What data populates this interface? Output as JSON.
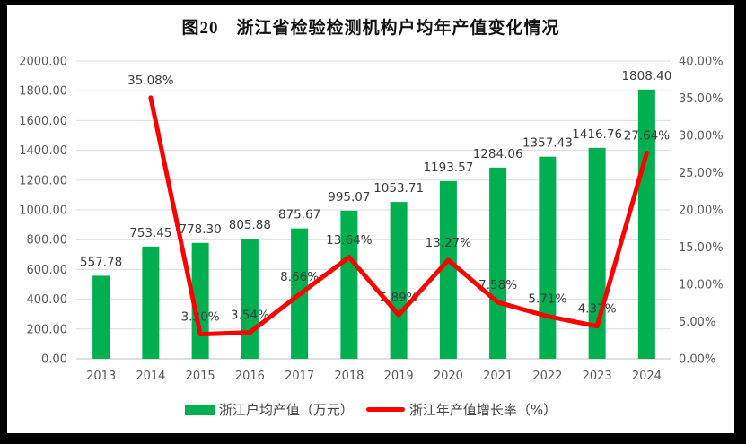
{
  "title": "图20　浙江省检验检测机构户均年产值变化情况",
  "chart_data": {
    "type": "bar",
    "subtype": "combo-bar-line-dual-axis",
    "categories": [
      "2013",
      "2014",
      "2015",
      "2016",
      "2017",
      "2018",
      "2019",
      "2020",
      "2021",
      "2022",
      "2023",
      "2024"
    ],
    "series": [
      {
        "name": "浙江户均产值（万元）",
        "type": "bar",
        "axis": "left",
        "color": "#00AF50",
        "values": [
          557.78,
          753.45,
          778.3,
          805.88,
          875.67,
          995.07,
          1053.71,
          1193.57,
          1284.06,
          1357.43,
          1416.76,
          1808.4
        ],
        "labels": [
          "557.78",
          "753.45",
          "778.30",
          "805.88",
          "875.67",
          "995.07",
          "1053.71",
          "1193.57",
          "1284.06",
          "1357.43",
          "1416.76",
          "1808.40"
        ]
      },
      {
        "name": "浙江年产值增长率（%）",
        "type": "line",
        "axis": "right",
        "color": "#FF0000",
        "values": [
          null,
          35.08,
          3.3,
          3.54,
          8.66,
          13.64,
          5.89,
          13.27,
          7.58,
          5.71,
          4.37,
          27.64
        ],
        "labels": [
          null,
          "35.08%",
          "3.30%",
          "3.54%",
          "8.66%",
          "13.64%",
          "5.89%",
          "13.27%",
          "7.58%",
          "5.71%",
          "4.37%",
          "27.64%"
        ]
      }
    ],
    "left_axis": {
      "min": 0,
      "max": 2000,
      "step": 200,
      "ticks": [
        "0.00",
        "200.00",
        "400.00",
        "600.00",
        "800.00",
        "1000.00",
        "1200.00",
        "1400.00",
        "1600.00",
        "1800.00",
        "2000.00"
      ]
    },
    "right_axis": {
      "min": 0,
      "max": 40,
      "step": 5,
      "ticks": [
        "0.00%",
        "5.00%",
        "10.00%",
        "15.00%",
        "20.00%",
        "25.00%",
        "30.00%",
        "35.00%",
        "40.00%"
      ]
    },
    "grid": true,
    "legend_position": "bottom",
    "colors": {
      "gridline": "#DCDCDC",
      "axis_line": "#BFBFBF",
      "tick_text": "#595959",
      "label_text": "#3B3B3B",
      "frame": "#000000"
    }
  }
}
